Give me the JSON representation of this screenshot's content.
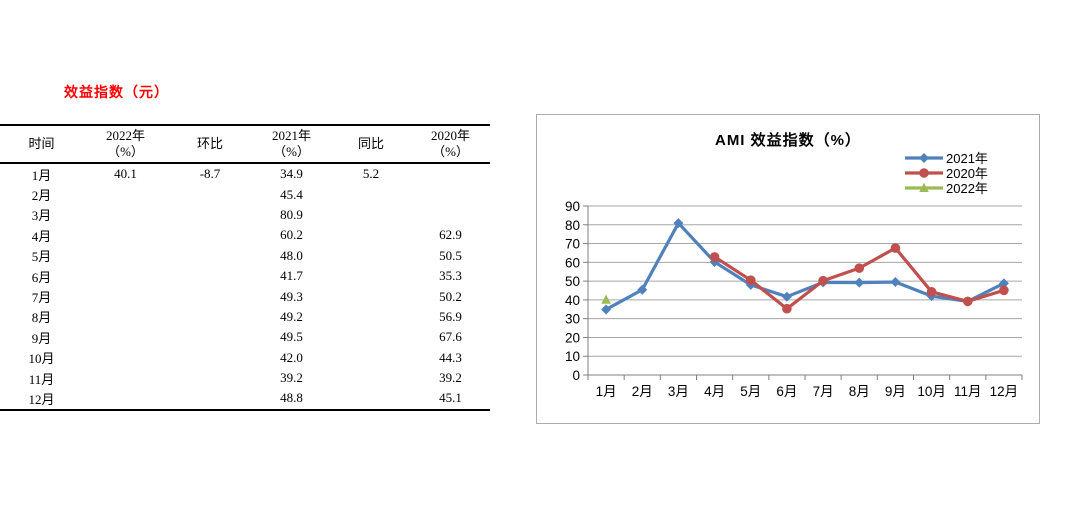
{
  "left_panel": {
    "title": "效益指数（元）",
    "title_color": "#FF0000",
    "table": {
      "headers": [
        {
          "line1": "时间",
          "line2": ""
        },
        {
          "line1": "2022年",
          "line2": "（%）"
        },
        {
          "line1": "环比",
          "line2": ""
        },
        {
          "line1": "2021年",
          "line2": "（%）"
        },
        {
          "line1": "同比",
          "line2": ""
        },
        {
          "line1": "2020年",
          "line2": "（%）"
        }
      ],
      "rows": [
        [
          "1月",
          "40.1",
          "-8.7",
          "34.9",
          "5.2",
          ""
        ],
        [
          "2月",
          "",
          "",
          "45.4",
          "",
          ""
        ],
        [
          "3月",
          "",
          "",
          "80.9",
          "",
          ""
        ],
        [
          "4月",
          "",
          "",
          "60.2",
          "",
          "62.9"
        ],
        [
          "5月",
          "",
          "",
          "48.0",
          "",
          "50.5"
        ],
        [
          "6月",
          "",
          "",
          "41.7",
          "",
          "35.3"
        ],
        [
          "7月",
          "",
          "",
          "49.3",
          "",
          "50.2"
        ],
        [
          "8月",
          "",
          "",
          "49.2",
          "",
          "56.9"
        ],
        [
          "9月",
          "",
          "",
          "49.5",
          "",
          "67.6"
        ],
        [
          "10月",
          "",
          "",
          "42.0",
          "",
          "44.3"
        ],
        [
          "11月",
          "",
          "",
          "39.2",
          "",
          "39.2"
        ],
        [
          "12月",
          "",
          "",
          "48.8",
          "",
          "45.1"
        ]
      ]
    }
  },
  "chart_data": {
    "type": "line",
    "title": "AMI 效益指数（%）",
    "categories": [
      "1月",
      "2月",
      "3月",
      "4月",
      "5月",
      "6月",
      "7月",
      "8月",
      "9月",
      "10月",
      "11月",
      "12月"
    ],
    "series": [
      {
        "name": "2021年",
        "color": "#4F81BD",
        "marker": "diamond",
        "values": [
          34.9,
          45.4,
          80.9,
          60.2,
          48.0,
          41.7,
          49.3,
          49.2,
          49.5,
          42.0,
          39.2,
          48.8
        ]
      },
      {
        "name": "2020年",
        "color": "#C0504D",
        "marker": "circle",
        "values": [
          null,
          null,
          null,
          62.9,
          50.5,
          35.3,
          50.2,
          56.9,
          67.6,
          44.3,
          39.2,
          45.1
        ]
      },
      {
        "name": "2022年",
        "color": "#9BBB59",
        "marker": "triangle",
        "values": [
          40.1,
          null,
          null,
          null,
          null,
          null,
          null,
          null,
          null,
          null,
          null,
          null
        ]
      }
    ],
    "ylim": [
      0,
      90
    ],
    "ytick_step": 10,
    "grid": true,
    "legend_position": "top-right",
    "gridline_color": "#A6A6A6",
    "axis_color": "#7F7F7F"
  }
}
